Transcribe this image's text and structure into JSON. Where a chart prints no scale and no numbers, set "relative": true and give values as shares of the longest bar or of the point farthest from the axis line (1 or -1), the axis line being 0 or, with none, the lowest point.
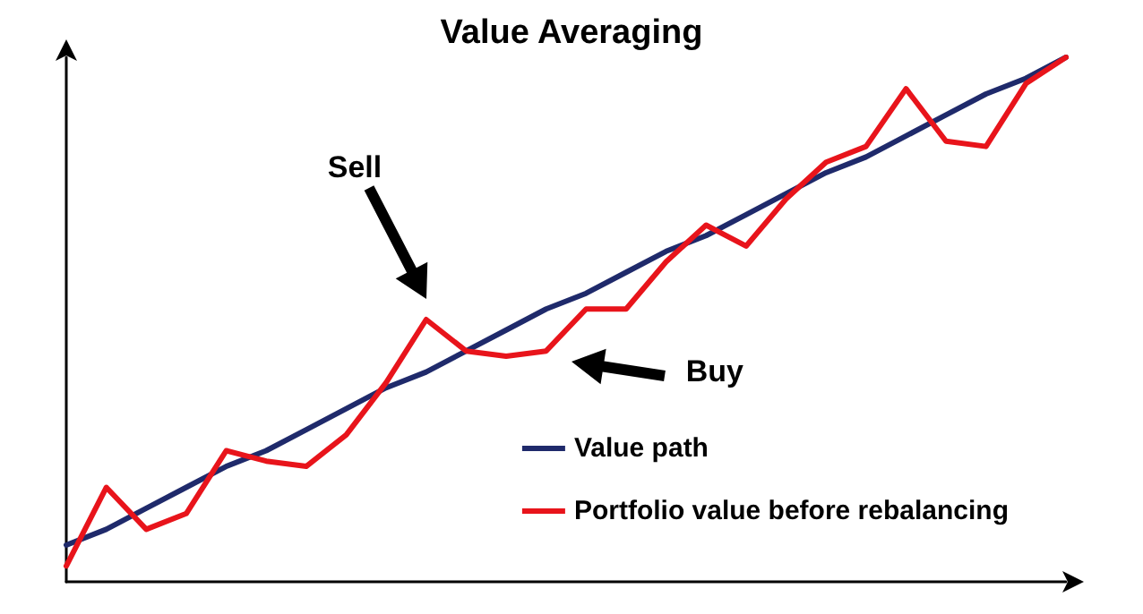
{
  "chart_data": {
    "type": "line",
    "title": "Value Averaging",
    "relative": true,
    "categories": [
      null,
      null,
      null,
      null,
      null,
      null,
      null,
      null,
      null,
      null,
      null,
      null,
      null,
      null,
      null,
      null,
      null,
      null,
      null,
      null,
      null,
      null,
      null,
      null,
      null,
      null
    ],
    "series": [
      {
        "name": "Value path",
        "color": "#1f2a6b",
        "values": [
          0.07,
          0.1,
          0.14,
          0.18,
          0.22,
          0.25,
          0.29,
          0.33,
          0.37,
          0.4,
          0.44,
          0.48,
          0.52,
          0.55,
          0.59,
          0.63,
          0.66,
          0.7,
          0.74,
          0.78,
          0.81,
          0.85,
          0.89,
          0.93,
          0.96,
          1.0
        ]
      },
      {
        "name": "Portfolio value before rebalancing",
        "color": "#e8141b",
        "values": [
          0.03,
          0.18,
          0.1,
          0.13,
          0.25,
          0.23,
          0.22,
          0.28,
          0.38,
          0.5,
          0.44,
          0.43,
          0.44,
          0.52,
          0.52,
          0.61,
          0.68,
          0.64,
          0.73,
          0.8,
          0.83,
          0.94,
          0.84,
          0.83,
          0.95,
          1.0
        ]
      }
    ],
    "annotations": [
      "Sell",
      "Buy"
    ],
    "legend": "bottom right",
    "grid": false,
    "marker": "none",
    "line_style": "solid"
  }
}
